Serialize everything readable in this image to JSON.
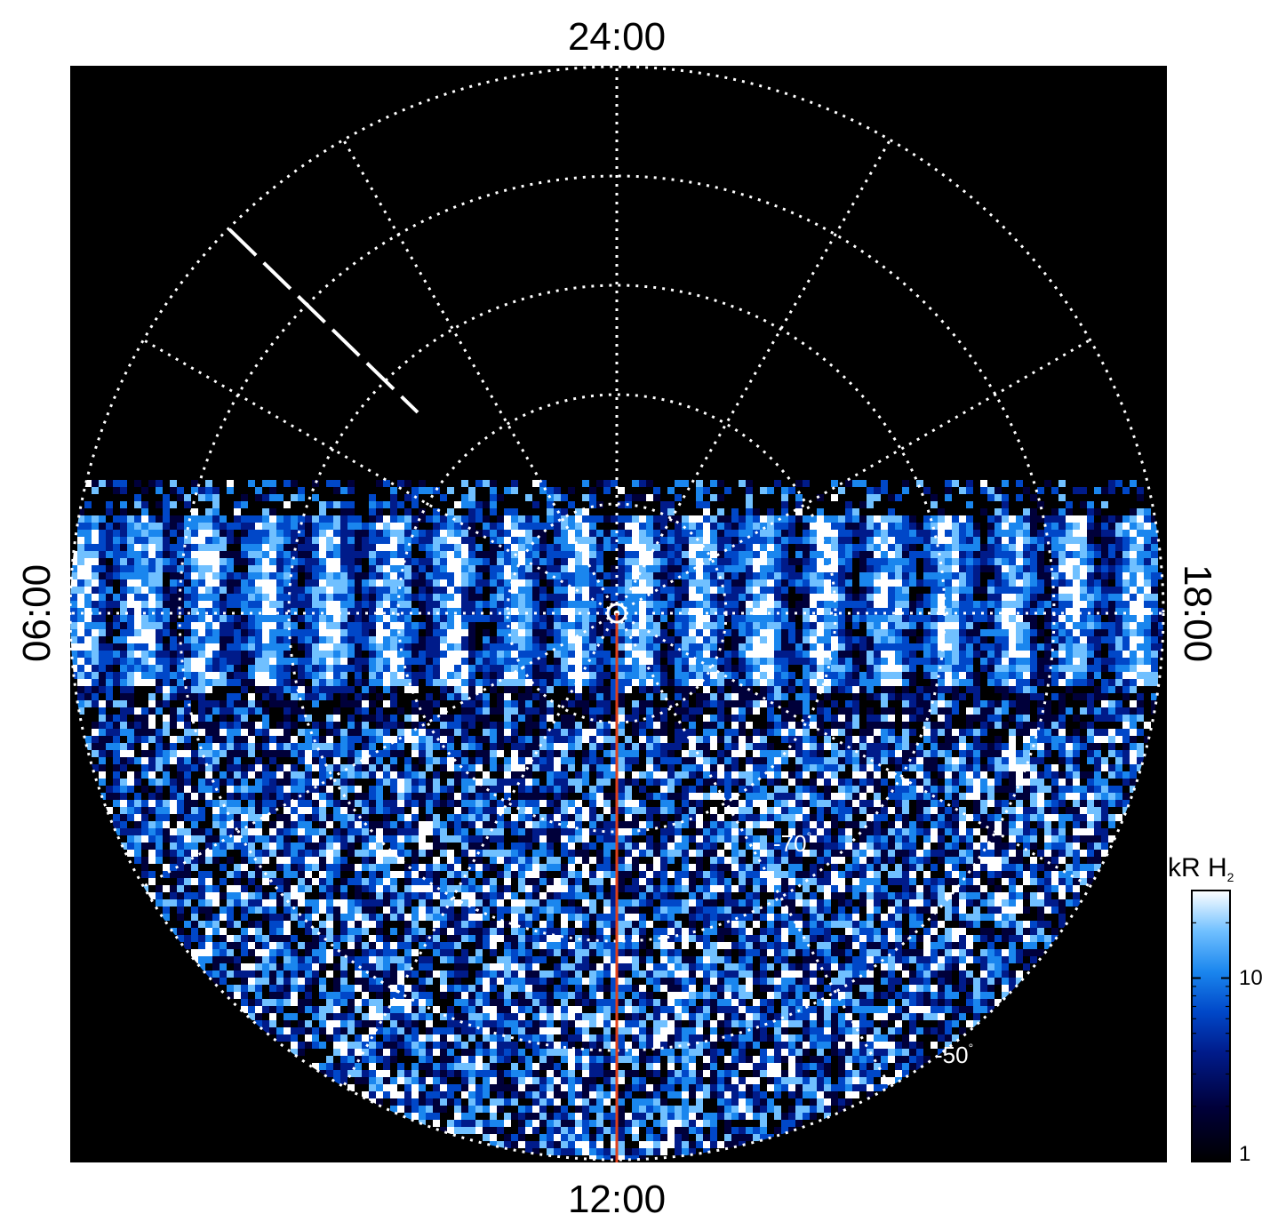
{
  "chart_data": {
    "type": "heatmap",
    "projection": "polar",
    "hemisphere": "south",
    "title": "",
    "local_time_labels": {
      "top": "24:00",
      "bottom": "12:00",
      "left": "06:00",
      "right": "18:00"
    },
    "latitude_labels": [
      {
        "value": -70,
        "text": "-70",
        "unit": "°"
      },
      {
        "value": -50,
        "text": "-50",
        "unit": "°"
      }
    ],
    "latitude_grid": [
      -90,
      -80,
      -70,
      -60,
      -50,
      -40
    ],
    "longitude_grid_step_hours": 2,
    "grid_style": "dotted-white",
    "colorbar": {
      "title": "kR H",
      "title_subscript": "2",
      "scale": "log",
      "range": [
        1,
        30
      ],
      "tick_labels": [
        "10",
        "1"
      ],
      "tick_values": [
        10,
        1
      ],
      "placement": "right-bottom"
    },
    "colors": {
      "background": "#000000",
      "grid": "#ffffff",
      "noon_line": "#e0401a",
      "colormap": [
        "#000000",
        "#00003a",
        "#001b8a",
        "#0047c8",
        "#1a86ee",
        "#70c0ff",
        "#ffffff"
      ]
    },
    "annotations": [
      "noon meridian line (12 LT)",
      "dashed reference line near 03 LT"
    ]
  }
}
